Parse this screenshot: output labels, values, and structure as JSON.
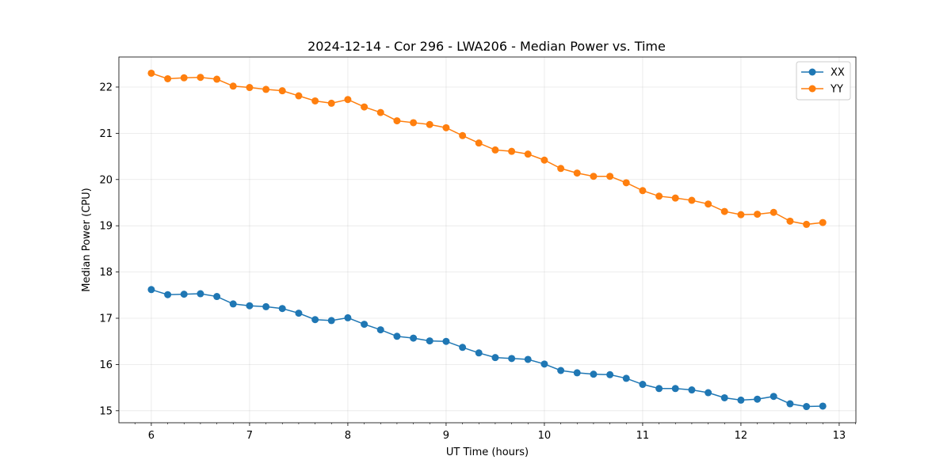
{
  "chart_data": {
    "type": "line",
    "title": "2024-12-14 - Cor 296 - LWA206 - Median Power vs. Time",
    "xlabel": "UT Time (hours)",
    "ylabel": "Median Power (CPU)",
    "xlim": [
      5.67,
      13.17
    ],
    "ylim": [
      14.74,
      22.65
    ],
    "xticks": [
      6,
      7,
      8,
      9,
      10,
      11,
      12,
      13
    ],
    "xtick_labels": [
      "6",
      "7",
      "8",
      "9",
      "10",
      "11",
      "12",
      "13"
    ],
    "yticks": [
      15,
      16,
      17,
      18,
      19,
      20,
      21,
      22
    ],
    "ytick_labels": [
      "15",
      "16",
      "17",
      "18",
      "19",
      "20",
      "21",
      "22"
    ],
    "grid": true,
    "legend_position": "upper right",
    "x": [
      6.0,
      6.167,
      6.333,
      6.5,
      6.667,
      6.833,
      7.0,
      7.167,
      7.333,
      7.5,
      7.667,
      7.833,
      8.0,
      8.167,
      8.333,
      8.5,
      8.667,
      8.833,
      9.0,
      9.167,
      9.333,
      9.5,
      9.667,
      9.833,
      10.0,
      10.167,
      10.333,
      10.5,
      10.667,
      10.833,
      11.0,
      11.167,
      11.333,
      11.5,
      11.667,
      11.833,
      12.0,
      12.167,
      12.333,
      12.5,
      12.667,
      12.833
    ],
    "series": [
      {
        "name": "XX",
        "color": "#1f77b4",
        "values": [
          17.62,
          17.51,
          17.52,
          17.53,
          17.47,
          17.31,
          17.27,
          17.25,
          17.21,
          17.11,
          16.97,
          16.95,
          17.01,
          16.87,
          16.75,
          16.61,
          16.57,
          16.51,
          16.5,
          16.37,
          16.25,
          16.15,
          16.13,
          16.11,
          16.01,
          15.87,
          15.82,
          15.79,
          15.78,
          15.7,
          15.57,
          15.48,
          15.48,
          15.45,
          15.39,
          15.28,
          15.23,
          15.25,
          15.31,
          15.15,
          15.09,
          15.1
        ]
      },
      {
        "name": "YY",
        "color": "#ff7f0e",
        "values": [
          22.3,
          22.18,
          22.2,
          22.21,
          22.17,
          22.02,
          21.99,
          21.95,
          21.92,
          21.81,
          21.7,
          21.65,
          21.73,
          21.57,
          21.45,
          21.27,
          21.23,
          21.19,
          21.12,
          20.95,
          20.79,
          20.64,
          20.61,
          20.55,
          20.42,
          20.24,
          20.14,
          20.07,
          20.07,
          19.93,
          19.76,
          19.64,
          19.6,
          19.55,
          19.47,
          19.31,
          19.24,
          19.25,
          19.29,
          19.1,
          19.03,
          19.07
        ]
      }
    ]
  }
}
